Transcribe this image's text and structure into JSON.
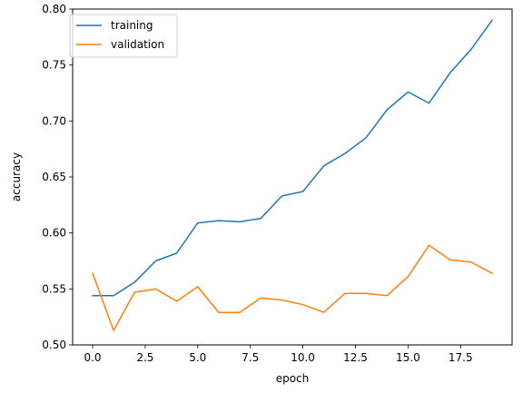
{
  "chart_data": {
    "type": "line",
    "title": "",
    "xlabel": "epoch",
    "ylabel": "accuracy",
    "xlim": [
      -0.95,
      19.95
    ],
    "ylim": [
      0.5,
      0.8
    ],
    "xticks": [
      0.0,
      2.5,
      5.0,
      7.5,
      10.0,
      12.5,
      15.0,
      17.5
    ],
    "xtick_labels": [
      "0.0",
      "2.5",
      "5.0",
      "7.5",
      "10.0",
      "12.5",
      "15.0",
      "17.5"
    ],
    "yticks": [
      0.5,
      0.55,
      0.6,
      0.65,
      0.7,
      0.75,
      0.8
    ],
    "ytick_labels": [
      "0.50",
      "0.55",
      "0.60",
      "0.65",
      "0.70",
      "0.75",
      "0.80"
    ],
    "grid": false,
    "legend": "top-left",
    "x": [
      0,
      1,
      2,
      3,
      4,
      5,
      6,
      7,
      8,
      9,
      10,
      11,
      12,
      13,
      14,
      15,
      16,
      17,
      18,
      19
    ],
    "series": [
      {
        "name": "training",
        "color": "#1f77b4",
        "values": [
          0.544,
          0.544,
          0.556,
          0.575,
          0.582,
          0.609,
          0.611,
          0.61,
          0.613,
          0.633,
          0.637,
          0.66,
          0.671,
          0.685,
          0.71,
          0.726,
          0.716,
          0.743,
          0.764,
          0.79
        ]
      },
      {
        "name": "validation",
        "color": "#ff7f0e",
        "values": [
          0.564,
          0.513,
          0.547,
          0.55,
          0.539,
          0.552,
          0.529,
          0.529,
          0.542,
          0.54,
          0.536,
          0.529,
          0.546,
          0.546,
          0.544,
          0.561,
          0.589,
          0.576,
          0.574,
          0.564
        ]
      }
    ]
  }
}
